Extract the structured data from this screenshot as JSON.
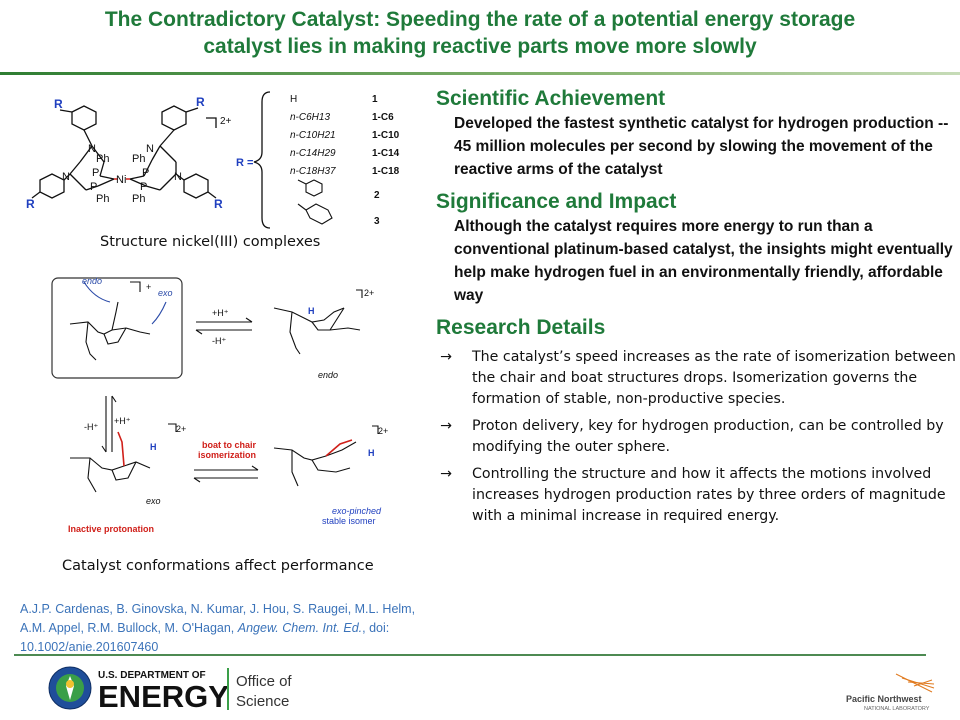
{
  "title": {
    "line1": "The Contradictory Catalyst: Speeding the rate of a potential energy storage",
    "line2": "catalyst lies in making reactive parts move more slowly"
  },
  "left": {
    "structure_caption": "Structure nickel(III) complexes",
    "conformations_caption": "Catalyst conformations affect performance",
    "structure": {
      "R": "R",
      "Ph": "Ph",
      "P": "P",
      "N": "N",
      "Ni": "Ni",
      "charge": "2+",
      "r_equals": "R =",
      "substituents": [
        {
          "formula": "H",
          "label": "1"
        },
        {
          "formula": "n-C6H13",
          "label": "1-C6"
        },
        {
          "formula": "n-C10H21",
          "label": "1-C10"
        },
        {
          "formula": "n-C14H29",
          "label": "1-C14"
        },
        {
          "formula": "n-C18H37",
          "label": "1-C18"
        },
        {
          "formula": "",
          "label": "2"
        },
        {
          "formula": "",
          "label": "3"
        }
      ]
    },
    "scheme": {
      "endo": "endo",
      "exo": "exo",
      "plus": "+",
      "charge": "2+",
      "forward_h": "+H⁺",
      "reverse_h": "-H⁺",
      "down_h": "-H⁺",
      "up_h": "+H⁺",
      "boat_to_chair_line1": "boat to chair",
      "boat_to_chair_line2": "isomerization",
      "inactive": "Inactive protonation",
      "exo_pinched_line1": "exo-pinched",
      "exo_pinched_line2": "stable isomer",
      "H": "H"
    },
    "reference": {
      "authors": "A.J.P. Cardenas, B. Ginovska, N. Kumar, J. Hou, S. Raugei, M.L. Helm, A.M. Appel, R.M. Bullock, M. O'Hagan,",
      "journal": "Angew. Chem. Int. Ed.",
      "doi": ", doi: 10.1002/anie.201607460"
    }
  },
  "sections": [
    {
      "heading": "Scientific Achievement",
      "body": "Developed the fastest synthetic catalyst for hydrogen production  -- 45 million molecules per second by slowing the movement of the reactive arms of the catalyst"
    },
    {
      "heading": "Significance and Impact",
      "body": "Although the catalyst requires more energy to run than a conventional  platinum-based  catalyst, the insights might eventually help make hydrogen fuel in an environmentally friendly, affordable way"
    }
  ],
  "research": {
    "heading": "Research Details",
    "arrow": "→",
    "items": [
      "The catalyst’s speed increases as the rate of isomerization between the chair and boat structures drops. Isomerization governs the formation of stable, non-productive species.",
      "Proton delivery, key for hydrogen production, can be controlled by modifying the outer sphere.",
      "Controlling the structure and how it affects the motions involved increases hydrogen production rates by three orders of magnitude  with a minimal increase in required energy."
    ]
  },
  "footer": {
    "doe_line1": "U.S. DEPARTMENT OF",
    "doe_line2": "ENERGY",
    "office_line1": "Office of",
    "office_line2": "Science",
    "pnnl_line1": "Pacific Northwest",
    "pnnl_line2": "NATIONAL LABORATORY"
  },
  "colors": {
    "title_green": "#1f7a3a",
    "reference_blue": "#3b73b9",
    "structure_blue": "#1f3fbf",
    "scheme_red": "#d0201a"
  }
}
